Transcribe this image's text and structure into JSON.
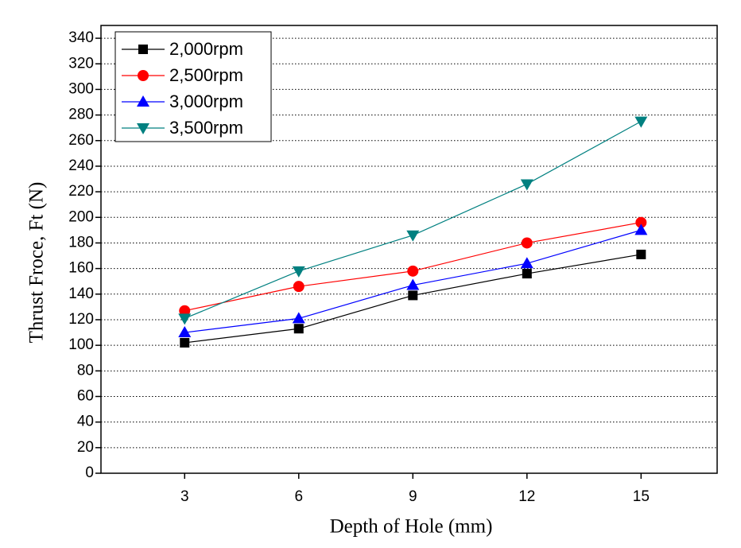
{
  "chart_data": {
    "type": "line",
    "x_label": "Depth of Hole (mm)",
    "y_label": "Thrust Froce, Ft (N)",
    "x": [
      3,
      6,
      9,
      12,
      15
    ],
    "series": [
      {
        "name": "2,000rpm",
        "color": "#000000",
        "marker": "square",
        "values": [
          102,
          113,
          139,
          156,
          171
        ]
      },
      {
        "name": "2,500rpm",
        "color": "#ff0000",
        "marker": "circle",
        "values": [
          127,
          146,
          158,
          180,
          196
        ]
      },
      {
        "name": "3,000rpm",
        "color": "#0000ff",
        "marker": "triangle-up",
        "values": [
          110,
          121,
          147,
          164,
          190
        ]
      },
      {
        "name": "3,500rpm",
        "color": "#008080",
        "marker": "triangle-down",
        "values": [
          121,
          158,
          186,
          226,
          275
        ]
      }
    ],
    "xlim": [
      0.8,
      17
    ],
    "ylim": [
      0,
      350
    ],
    "xticks": [
      3,
      6,
      9,
      12,
      15
    ],
    "yticks": [
      0,
      20,
      40,
      60,
      80,
      100,
      120,
      140,
      160,
      180,
      200,
      220,
      240,
      260,
      280,
      300,
      320,
      340
    ],
    "grid": true,
    "legend": "upper left"
  }
}
